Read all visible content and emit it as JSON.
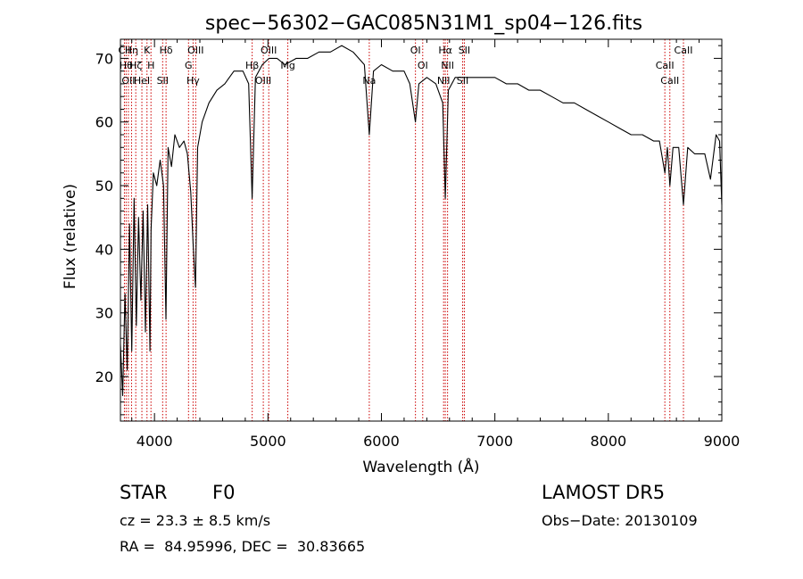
{
  "chart_data": {
    "type": "line",
    "title": "spec−56302−GAC085N31M1_sp04−126.fits",
    "xlabel": "Wavelength (Å)",
    "ylabel": "Flux (relative)",
    "xlim": [
      3700,
      9000
    ],
    "ylim": [
      13,
      73
    ],
    "xticks": [
      4000,
      5000,
      6000,
      7000,
      8000,
      9000
    ],
    "yticks": [
      20,
      30,
      40,
      50,
      60,
      70
    ],
    "grid": false,
    "legend": "none",
    "colors": {
      "spectrum": "#000000",
      "lines": "#cc0000"
    },
    "series": [
      {
        "x": [
          3700,
          3720,
          3740,
          3760,
          3780,
          3800,
          3820,
          3840,
          3860,
          3880,
          3900,
          3920,
          3940,
          3960,
          3970,
          3990,
          4020,
          4050,
          4080,
          4101,
          4120,
          4150,
          4180,
          4220,
          4260,
          4290,
          4320,
          4340,
          4361,
          4380,
          4420,
          4480,
          4550,
          4620,
          4700,
          4780,
          4830,
          4861,
          4890,
          4950,
          5010,
          5080,
          5150,
          5250,
          5350,
          5450,
          5550,
          5650,
          5750,
          5850,
          5893,
          5930,
          6000,
          6100,
          6200,
          6250,
          6300,
          6330,
          6400,
          6480,
          6540,
          6563,
          6590,
          6650,
          6700,
          6800,
          6900,
          7000,
          7100,
          7200,
          7300,
          7400,
          7500,
          7600,
          7700,
          7800,
          7900,
          8000,
          8100,
          8200,
          8300,
          8400,
          8450,
          8498,
          8520,
          8542,
          8570,
          8620,
          8662,
          8700,
          8760,
          8800,
          8850,
          8900,
          8950,
          8980,
          9000
        ],
        "y": [
          25,
          17,
          33,
          21,
          44,
          24,
          48,
          28,
          45,
          32,
          46,
          27,
          47,
          24,
          43,
          52,
          50,
          54,
          50,
          29,
          56,
          53,
          58,
          56,
          57,
          55,
          49,
          41,
          34,
          56,
          60,
          63,
          65,
          66,
          68,
          68,
          66,
          48,
          67,
          69,
          70,
          70,
          69,
          70,
          70,
          71,
          71,
          72,
          71,
          69,
          58,
          68,
          69,
          68,
          68,
          66,
          60,
          66,
          67,
          66,
          63,
          48,
          65,
          67,
          67,
          67,
          67,
          67,
          66,
          66,
          65,
          65,
          64,
          63,
          63,
          62,
          61,
          60,
          59,
          58,
          58,
          57,
          57,
          52,
          56,
          50,
          56,
          56,
          47,
          56,
          55,
          55,
          55,
          51,
          58,
          57,
          47
        ]
      }
    ],
    "line_marks": [
      {
        "wl": 3735,
        "labels": [
          "CII"
        ]
      },
      {
        "wl": 3750,
        "labels": [
          "Hθ"
        ]
      },
      {
        "wl": 3770,
        "labels": [
          "OII"
        ]
      },
      {
        "wl": 3798,
        "labels": [
          "Hη"
        ]
      },
      {
        "wl": 3835,
        "labels": [
          "Hζ"
        ]
      },
      {
        "wl": 3889,
        "labels": [
          "HeI"
        ]
      },
      {
        "wl": 3934,
        "labels": [
          "K"
        ]
      },
      {
        "wl": 3969,
        "labels": [
          "H"
        ]
      },
      {
        "wl": 4072,
        "labels": [
          "SII"
        ]
      },
      {
        "wl": 4102,
        "labels": [
          "Hδ"
        ]
      },
      {
        "wl": 4300,
        "labels": [
          "G"
        ]
      },
      {
        "wl": 4340,
        "labels": [
          "Hγ"
        ]
      },
      {
        "wl": 4363,
        "labels": [
          "OIII"
        ]
      },
      {
        "wl": 4861,
        "labels": [
          "Hβ"
        ]
      },
      {
        "wl": 4959,
        "labels": [
          "OIII"
        ]
      },
      {
        "wl": 5007,
        "labels": [
          "OIII"
        ]
      },
      {
        "wl": 5175,
        "labels": [
          "Mg"
        ]
      },
      {
        "wl": 5893,
        "labels": [
          "Na"
        ]
      },
      {
        "wl": 6300,
        "labels": [
          "OI"
        ]
      },
      {
        "wl": 6364,
        "labels": [
          "OI"
        ]
      },
      {
        "wl": 6548,
        "labels": [
          "NII"
        ]
      },
      {
        "wl": 6563,
        "labels": [
          "Hα"
        ]
      },
      {
        "wl": 6583,
        "labels": [
          "NII"
        ]
      },
      {
        "wl": 6716,
        "labels": [
          "SII"
        ]
      },
      {
        "wl": 6731,
        "labels": [
          "SII"
        ]
      },
      {
        "wl": 8498,
        "labels": [
          "CaII"
        ]
      },
      {
        "wl": 8542,
        "labels": [
          "CaII"
        ]
      },
      {
        "wl": 8662,
        "labels": [
          "CaII"
        ]
      }
    ]
  },
  "info": {
    "class_label": "STAR",
    "subclass": "F0",
    "survey": "LAMOST DR5",
    "redshift": "cz = 23.3 ± 8.5 km/s",
    "obs_date": "Obs−Date: 20130109",
    "coords": "RA =  84.95996, DEC =  30.83665"
  }
}
